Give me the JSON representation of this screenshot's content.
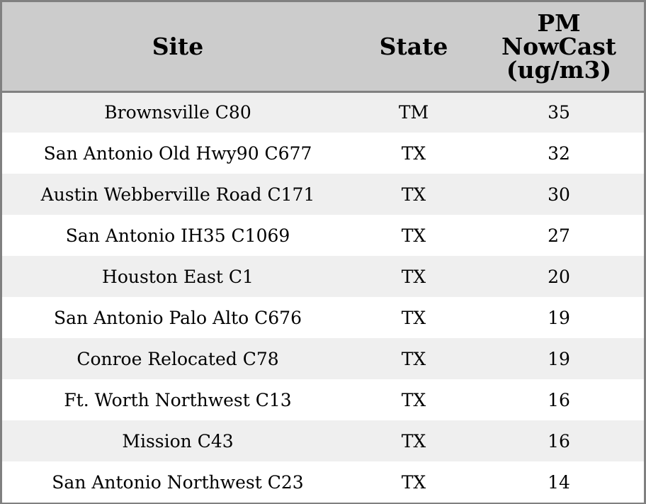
{
  "table": {
    "header": {
      "site": "Site",
      "state": "State",
      "pm_lines": [
        "PM",
        "NowCast",
        "(ug/m3)"
      ]
    },
    "rows": [
      {
        "site": "Brownsville C80",
        "state": "TM",
        "pm": "35"
      },
      {
        "site": "San Antonio Old Hwy90 C677",
        "state": "TX",
        "pm": "32"
      },
      {
        "site": "Austin Webberville Road C171",
        "state": "TX",
        "pm": "30"
      },
      {
        "site": "San Antonio IH35 C1069",
        "state": "TX",
        "pm": "27"
      },
      {
        "site": "Houston East C1",
        "state": "TX",
        "pm": "20"
      },
      {
        "site": "San Antonio Palo Alto C676",
        "state": "TX",
        "pm": "19"
      },
      {
        "site": "Conroe Relocated C78",
        "state": "TX",
        "pm": "19"
      },
      {
        "site": "Ft. Worth Northwest C13",
        "state": "TX",
        "pm": "16"
      },
      {
        "site": "Mission C43",
        "state": "TX",
        "pm": "16"
      },
      {
        "site": "San Antonio Northwest C23",
        "state": "TX",
        "pm": "14"
      }
    ]
  },
  "colors": {
    "header_bg": "#cccccc",
    "odd_row_bg": "#efefef",
    "even_row_bg": "#ffffff",
    "border": "#808080"
  }
}
